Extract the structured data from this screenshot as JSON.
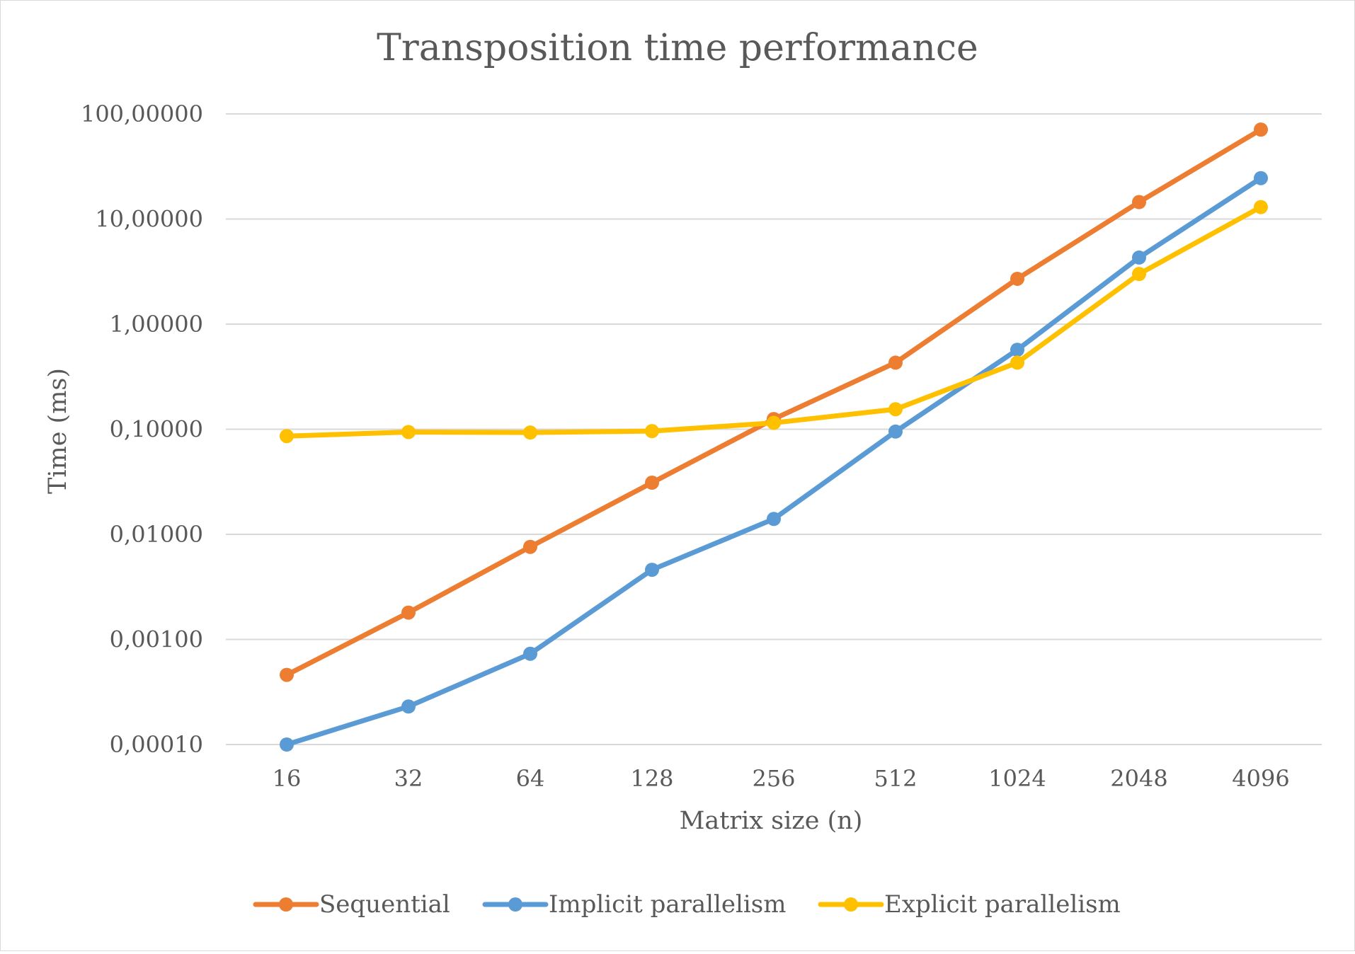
{
  "chart_data": {
    "type": "line",
    "title": "Transposition time performance",
    "xlabel": "Matrix size (n)",
    "ylabel": "Time (ms)",
    "y_scale": "log",
    "ylim": [
      0.0001,
      100
    ],
    "y_ticks": [
      0.0001,
      0.001,
      0.01,
      0.1,
      1,
      10,
      100
    ],
    "y_tick_labels": [
      "0,00010",
      "0,00100",
      "0,01000",
      "0,10000",
      "1,00000",
      "10,00000",
      "100,00000"
    ],
    "grid": "horizontal",
    "legend_position": "bottom",
    "categories": [
      "16",
      "32",
      "64",
      "128",
      "256",
      "512",
      "1024",
      "2048",
      "4096"
    ],
    "series": [
      {
        "name": "Sequential",
        "color": "#ED7D31",
        "values": [
          0.00046,
          0.0018,
          0.0076,
          0.031,
          0.125,
          0.43,
          2.7,
          14.5,
          71
        ]
      },
      {
        "name": "Implicit parallelism",
        "color": "#5B9BD5",
        "values": [
          0.0001,
          0.00023,
          0.00073,
          0.0046,
          0.014,
          0.095,
          0.57,
          4.3,
          24.5
        ]
      },
      {
        "name": "Explicit parallelism",
        "color": "#FFC000",
        "values": [
          0.086,
          0.094,
          0.093,
          0.096,
          0.115,
          0.155,
          0.43,
          3.0,
          13.0
        ]
      }
    ]
  }
}
